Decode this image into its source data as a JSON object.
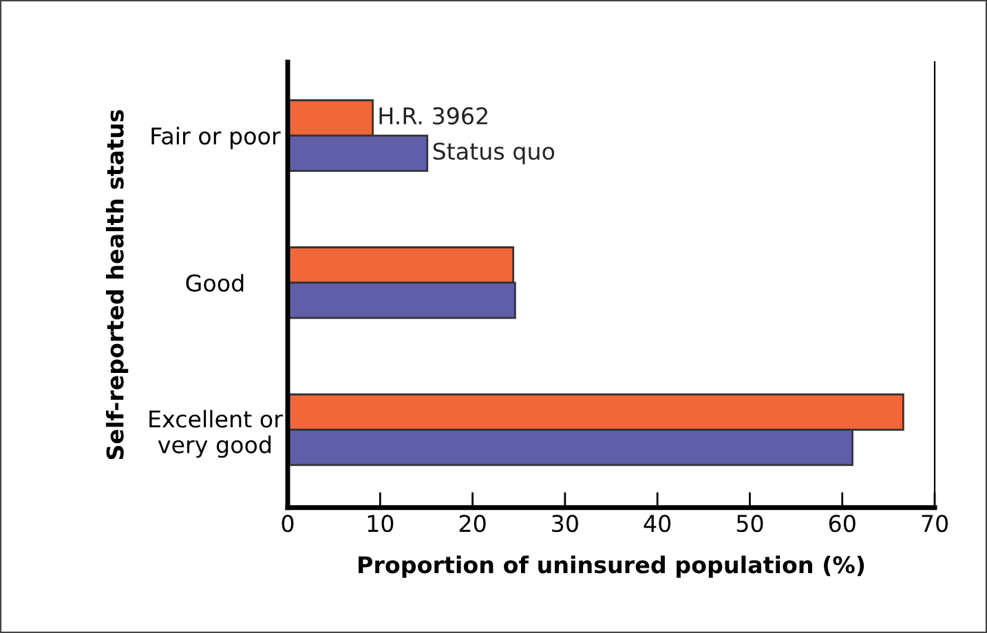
{
  "chart_data": {
    "type": "bar",
    "orientation": "horizontal",
    "xlabel": "Proportion of uninsured population (%)",
    "ylabel": "Self-reported health status",
    "categories": [
      "Fair or poor",
      "Good",
      "Excellent or\nvery good"
    ],
    "series": [
      {
        "name": "H.R. 3962",
        "color": "#f26739",
        "values": [
          9.2,
          24.4,
          66.6
        ]
      },
      {
        "name": "Status quo",
        "color": "#605ea8",
        "values": [
          15.1,
          24.6,
          61.1
        ]
      }
    ],
    "xlim": [
      0,
      70
    ],
    "xticks": [
      0,
      10,
      20,
      30,
      40,
      50,
      60,
      70
    ],
    "grid": false,
    "legend": false
  }
}
